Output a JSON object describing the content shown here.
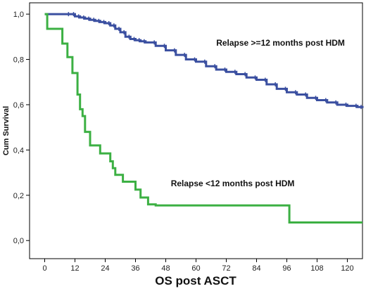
{
  "chart_data": {
    "type": "line",
    "step": true,
    "xlabel": "OS post ASCT",
    "ylabel": "Cum Survival",
    "xlim": [
      -6,
      126
    ],
    "ylim": [
      -0.08,
      1.05
    ],
    "x_ticks": [
      0,
      12,
      24,
      36,
      48,
      60,
      72,
      84,
      96,
      108,
      120
    ],
    "y_ticks": [
      0.0,
      0.2,
      0.4,
      0.6,
      0.8,
      1.0
    ],
    "y_tick_labels": [
      "0,0",
      "0,2",
      "0,4",
      "0,6",
      "0,8",
      "1,0"
    ],
    "grid": false,
    "annotations": [
      {
        "text": "Relapse >=12 months post HDM",
        "x": 68,
        "y": 0.86
      },
      {
        "text": "Relapse <12 months post HDM",
        "x": 50,
        "y": 0.24
      }
    ],
    "series": [
      {
        "color": "#3a4fa0",
        "x": [
          0,
          10,
          12,
          14,
          16,
          18,
          20,
          22,
          24,
          26,
          28,
          30,
          32,
          34,
          36,
          38,
          40,
          44,
          48,
          52,
          56,
          60,
          64,
          68,
          72,
          76,
          80,
          84,
          88,
          92,
          96,
          100,
          104,
          108,
          112,
          116,
          120,
          124,
          126
        ],
        "y": [
          1.0,
          1.0,
          0.99,
          0.985,
          0.98,
          0.975,
          0.97,
          0.965,
          0.96,
          0.95,
          0.935,
          0.92,
          0.9,
          0.89,
          0.885,
          0.88,
          0.875,
          0.86,
          0.84,
          0.82,
          0.8,
          0.79,
          0.77,
          0.755,
          0.745,
          0.735,
          0.72,
          0.71,
          0.69,
          0.67,
          0.655,
          0.645,
          0.63,
          0.62,
          0.61,
          0.6,
          0.595,
          0.59,
          0.585
        ]
      },
      {
        "color": "#3cb043",
        "x": [
          0,
          1,
          6,
          7,
          9,
          11,
          13,
          14,
          15,
          16,
          18,
          22,
          26,
          27,
          28,
          31,
          36,
          38,
          41,
          44,
          97,
          126
        ],
        "y": [
          1.0,
          0.935,
          0.935,
          0.87,
          0.81,
          0.74,
          0.645,
          0.58,
          0.55,
          0.48,
          0.42,
          0.385,
          0.35,
          0.32,
          0.29,
          0.26,
          0.225,
          0.19,
          0.16,
          0.155,
          0.08,
          0.08
        ]
      }
    ]
  }
}
